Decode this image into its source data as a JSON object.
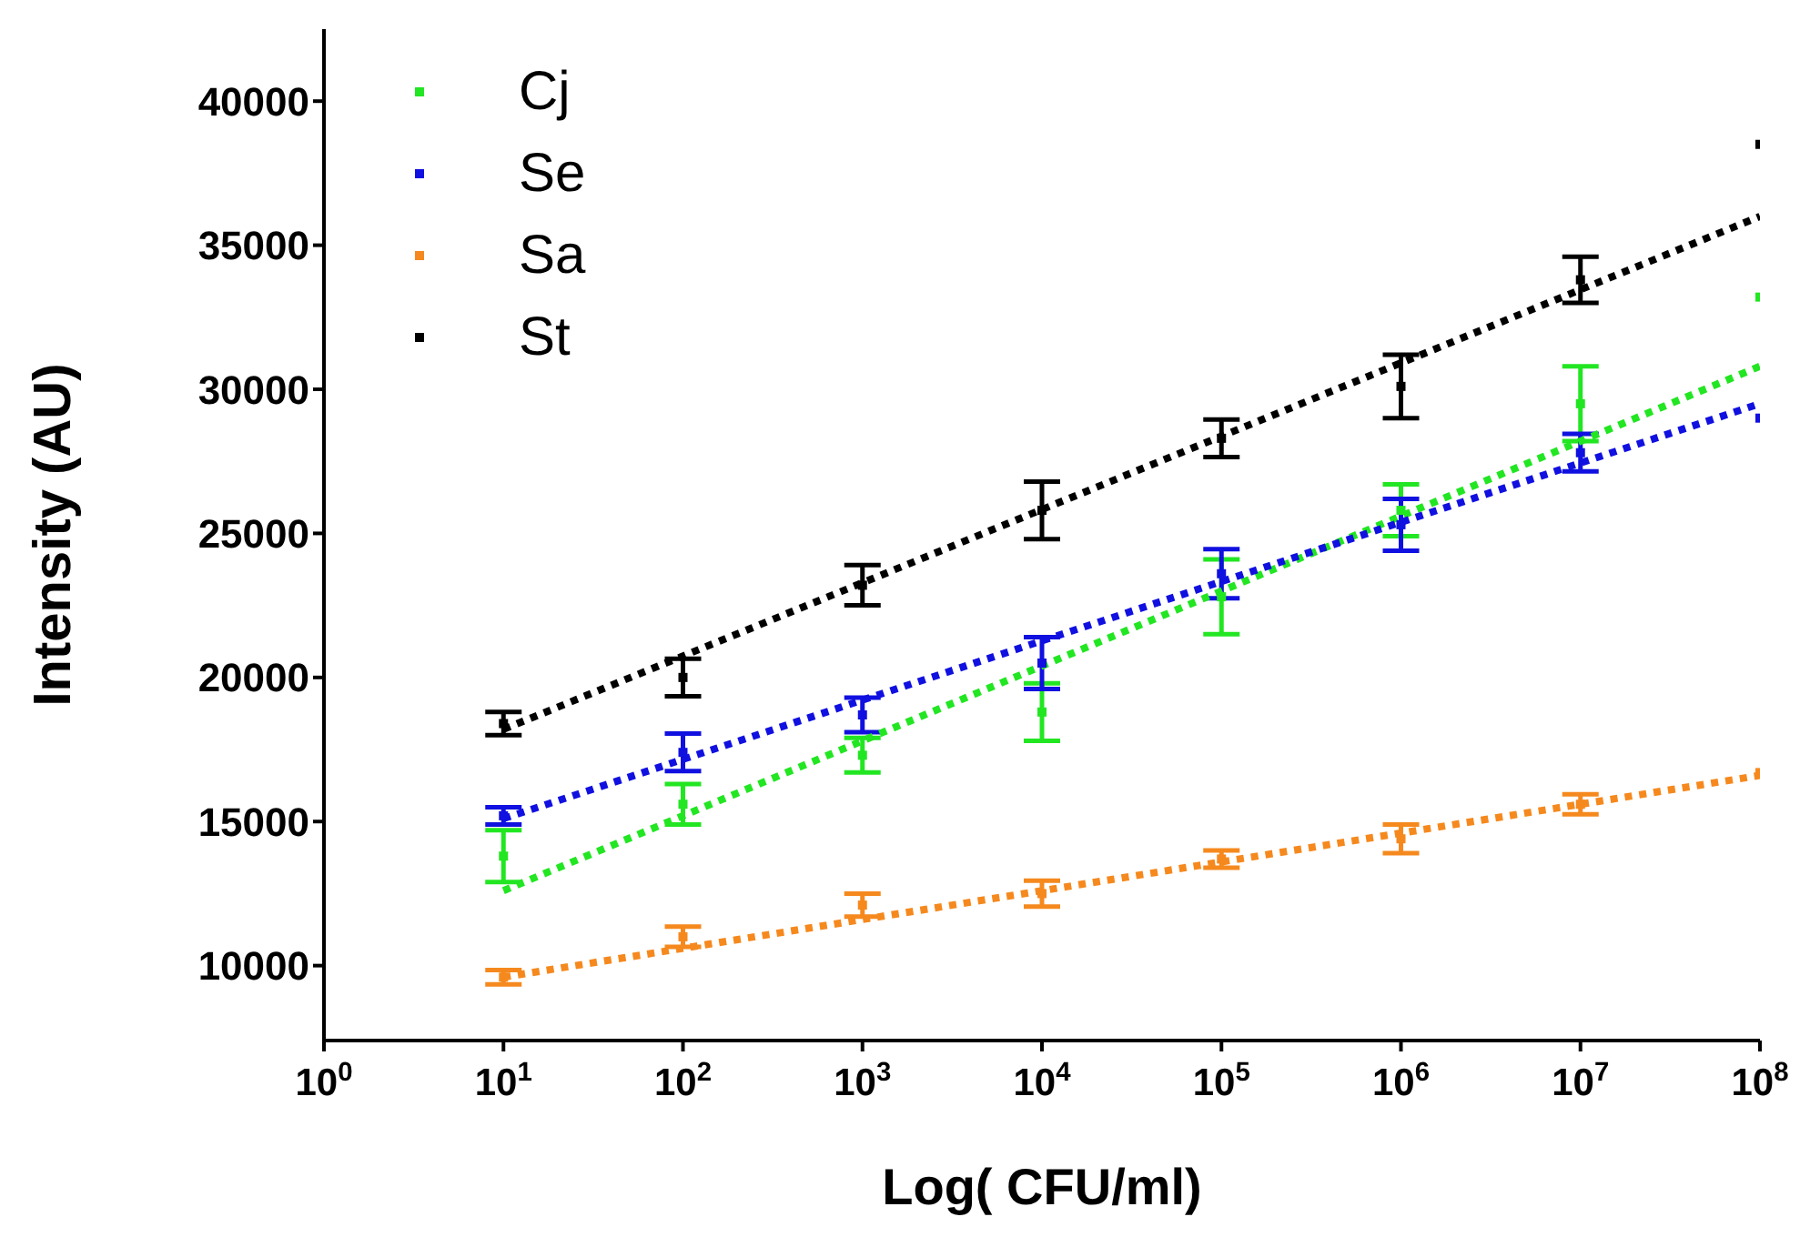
{
  "chart_data": {
    "type": "scatter",
    "xlabel": "Log( CFU/ml)",
    "ylabel": "Intensity (AU)",
    "x": [
      10,
      100,
      1000,
      10000,
      100000,
      1000000,
      10000000,
      100000000
    ],
    "log": "x",
    "xlim": [
      1,
      100000000
    ],
    "xticks": [
      {
        "value": 1,
        "label": "10$^{0}$"
      },
      {
        "value": 10,
        "label": "10$^{1}$"
      },
      {
        "value": 100,
        "label": "10$^{2}$"
      },
      {
        "value": 1000,
        "label": "10$^{3}$"
      },
      {
        "value": 10000,
        "label": "10$^{4}$"
      },
      {
        "value": 100000,
        "label": "10$^{5}$"
      },
      {
        "value": 1000000,
        "label": "10$^{6}$"
      },
      {
        "value": 10000000,
        "label": "10$^{7}$"
      },
      {
        "value": 100000000,
        "label": "10$^{8}$"
      }
    ],
    "ylim": [
      7400,
      42500
    ],
    "yticks": [
      10000,
      15000,
      20000,
      25000,
      30000,
      35000,
      40000
    ],
    "marker": "square",
    "legend": "top left",
    "grid": false,
    "series": [
      {
        "name": "Cj",
        "color": "#22e622",
        "values": [
          13800,
          15600,
          17300,
          18800,
          22800,
          25800,
          29500,
          33200
        ],
        "errors": [
          900,
          700,
          600,
          1000,
          1300,
          900,
          1300,
          null
        ]
      },
      {
        "name": "Se",
        "color": "#1010e0",
        "values": [
          15200,
          17400,
          18700,
          20500,
          23600,
          25300,
          27800,
          29000
        ],
        "errors": [
          300,
          650,
          600,
          900,
          850,
          900,
          650,
          null
        ]
      },
      {
        "name": "Sa",
        "color": "#f5891e",
        "values": [
          9600,
          11000,
          12100,
          12500,
          13700,
          14400,
          15600,
          16700
        ],
        "errors": [
          250,
          350,
          400,
          450,
          300,
          500,
          350,
          null
        ]
      },
      {
        "name": "St",
        "color": "#000000",
        "values": [
          18400,
          20000,
          23200,
          25800,
          28300,
          30100,
          33800,
          38500
        ],
        "errors": [
          400,
          650,
          700,
          1000,
          650,
          1100,
          800,
          null
        ]
      },
      {
        "type": "line",
        "marker": "none",
        "line_style": "dotted",
        "color": "#22e622",
        "values": [
          12600,
          null,
          null,
          null,
          null,
          null,
          null,
          30800
        ]
      },
      {
        "type": "line",
        "marker": "none",
        "line_style": "dotted",
        "color": "#1010e0",
        "values": [
          15100,
          null,
          null,
          null,
          null,
          null,
          null,
          29500
        ]
      },
      {
        "type": "line",
        "marker": "none",
        "line_style": "dotted",
        "color": "#f5891e",
        "values": [
          9600,
          null,
          null,
          null,
          null,
          null,
          null,
          16600
        ]
      },
      {
        "type": "line",
        "marker": "none",
        "line_style": "dotted",
        "color": "#000000",
        "values": [
          18200,
          null,
          null,
          null,
          null,
          null,
          null,
          36000
        ]
      }
    ]
  }
}
